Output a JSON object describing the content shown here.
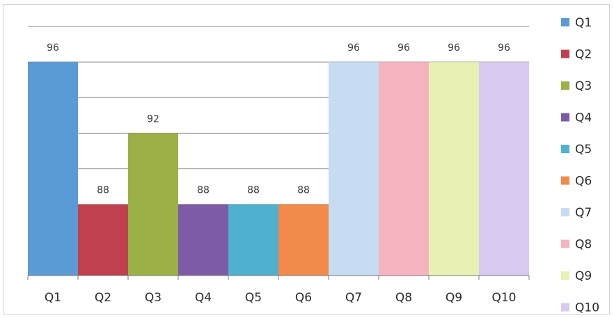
{
  "chart_data": {
    "type": "bar",
    "categories": [
      "Q1",
      "Q2",
      "Q3",
      "Q4",
      "Q5",
      "Q6",
      "Q7",
      "Q8",
      "Q9",
      "Q10"
    ],
    "values": [
      96,
      88,
      92,
      88,
      88,
      88,
      96,
      96,
      96,
      96
    ],
    "colors": [
      "#5b9bd5",
      "#c0404f",
      "#9bb045",
      "#7d5ba6",
      "#4fb1cf",
      "#f28a4a",
      "#c5dcf3",
      "#f5b4c0",
      "#e8f0b3",
      "#d8c9ef"
    ],
    "title": "",
    "xlabel": "",
    "ylabel": "",
    "ylim": [
      84,
      98
    ],
    "grid": true,
    "legend": {
      "position": "right",
      "entries": [
        "Q1",
        "Q2",
        "Q3",
        "Q4",
        "Q5",
        "Q6",
        "Q7",
        "Q8",
        "Q9",
        "Q10"
      ]
    }
  }
}
